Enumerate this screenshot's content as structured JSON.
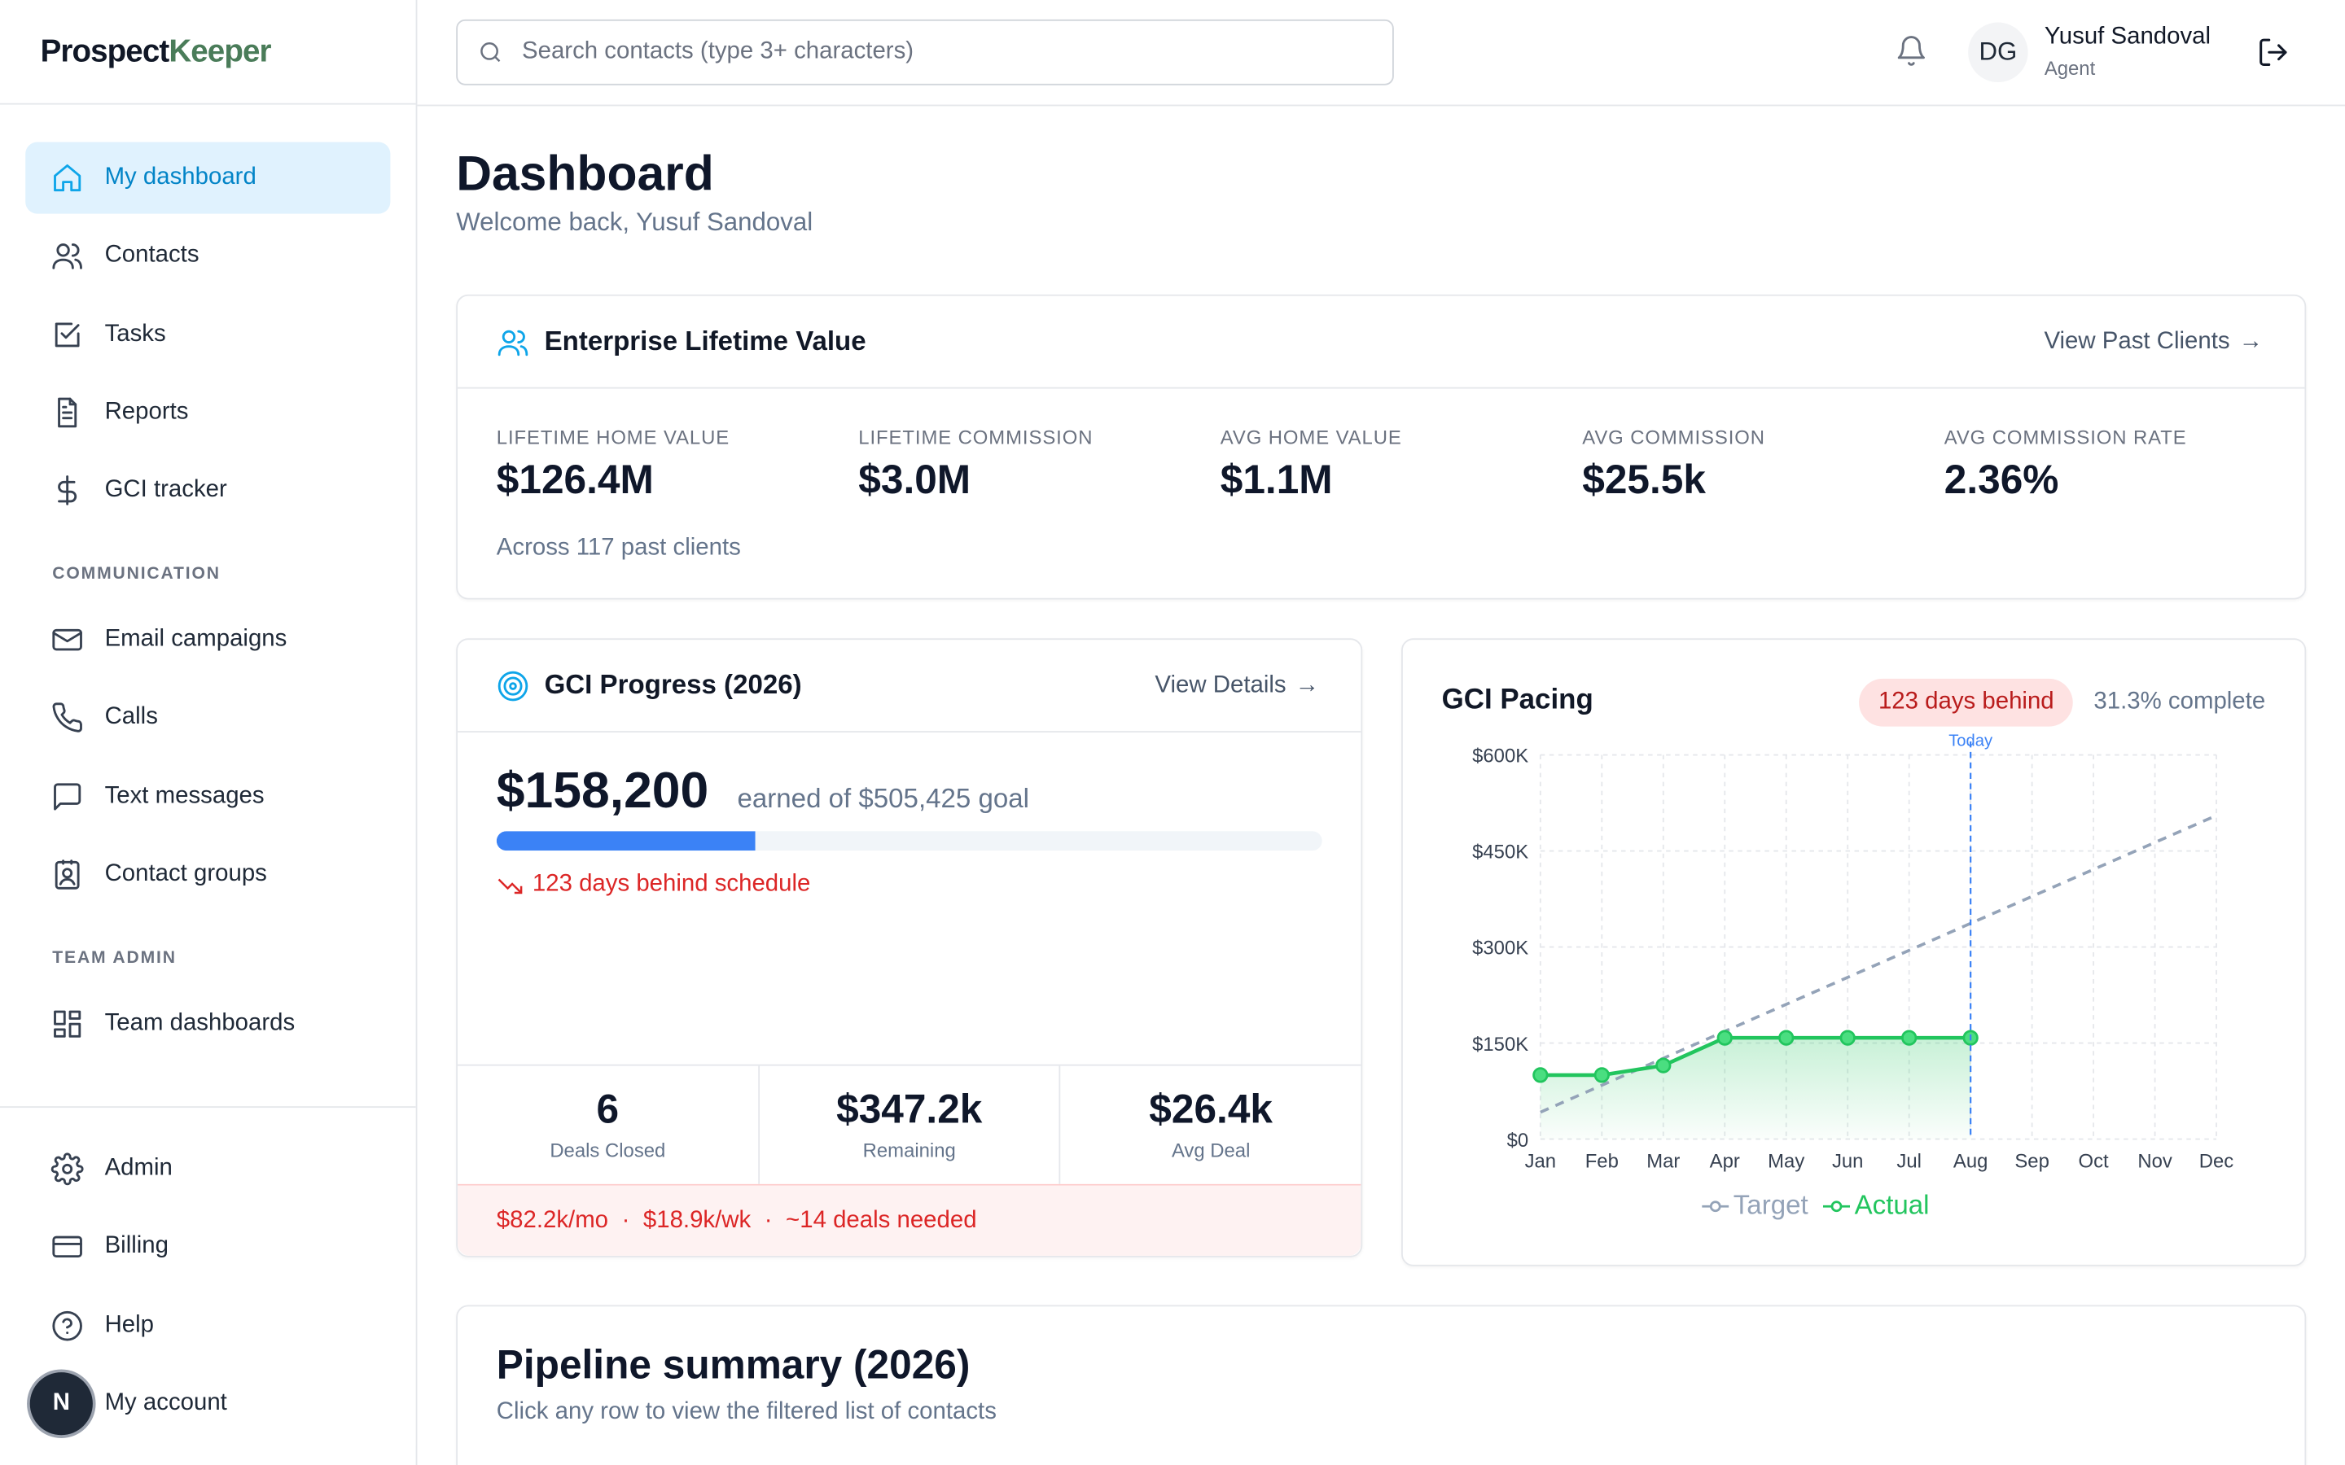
{
  "app": {
    "brand_part1": "Prospect",
    "brand_part2": "Keeper"
  },
  "sidebar": {
    "items": [
      {
        "label": "My dashboard",
        "icon": "home-icon"
      },
      {
        "label": "Contacts",
        "icon": "users-icon"
      },
      {
        "label": "Tasks",
        "icon": "checkbox-icon"
      },
      {
        "label": "Reports",
        "icon": "file-text-icon"
      },
      {
        "label": "GCI tracker",
        "icon": "dollar-icon"
      }
    ],
    "section_communication": "COMMUNICATION",
    "communication": [
      {
        "label": "Email campaigns",
        "icon": "mail-icon"
      },
      {
        "label": "Calls",
        "icon": "phone-icon"
      },
      {
        "label": "Text messages",
        "icon": "message-icon"
      },
      {
        "label": "Contact groups",
        "icon": "contact-book-icon"
      }
    ],
    "section_team": "TEAM ADMIN",
    "team": [
      {
        "label": "Team dashboards",
        "icon": "grid-icon"
      }
    ],
    "bottom": [
      {
        "label": "Admin",
        "icon": "gear-icon"
      },
      {
        "label": "Billing",
        "icon": "credit-card-icon"
      },
      {
        "label": "Help",
        "icon": "help-icon"
      },
      {
        "label": "My account",
        "icon": "user-icon"
      }
    ],
    "badge_letter": "N"
  },
  "topbar": {
    "search_placeholder": "Search contacts (type 3+ characters)",
    "avatar_initials": "DG",
    "user_name": "Yusuf Sandoval",
    "user_role": "Agent"
  },
  "page": {
    "title": "Dashboard",
    "subtitle": "Welcome back, Yusuf Sandoval"
  },
  "elv": {
    "title": "Enterprise Lifetime Value",
    "link": "View Past Clients",
    "stats": [
      {
        "label": "LIFETIME HOME VALUE",
        "value": "$126.4M"
      },
      {
        "label": "LIFETIME COMMISSION",
        "value": "$3.0M"
      },
      {
        "label": "AVG HOME VALUE",
        "value": "$1.1M"
      },
      {
        "label": "AVG COMMISSION",
        "value": "$25.5k"
      },
      {
        "label": "AVG COMMISSION RATE",
        "value": "2.36%"
      }
    ],
    "note": "Across 117 past clients"
  },
  "gci": {
    "title": "GCI Progress (2026)",
    "link": "View Details",
    "amount": "$158,200",
    "goal_text": "earned of $505,425 goal",
    "progress": 0.313,
    "behind": "123 days behind schedule",
    "metrics": [
      {
        "value": "6",
        "label": "Deals Closed"
      },
      {
        "value": "$347.2k",
        "label": "Remaining"
      },
      {
        "value": "$26.4k",
        "label": "Avg Deal"
      }
    ],
    "footer": [
      "$82.2k/mo",
      "$18.9k/wk",
      "~14 deals needed"
    ],
    "footer_sep": "·"
  },
  "pacing": {
    "title": "GCI Pacing",
    "pill": "123 days behind",
    "pct": "31.3% complete",
    "today_label": "Today",
    "colors": {
      "target": "#94a3b8",
      "actual": "#22c55e",
      "today": "#3b82f6"
    }
  },
  "chart_data": {
    "type": "line",
    "categories": [
      "Jan",
      "Feb",
      "Mar",
      "Apr",
      "May",
      "Jun",
      "Jul",
      "Aug",
      "Sep",
      "Oct",
      "Nov",
      "Dec"
    ],
    "y_ticks": [
      "$0",
      "$150K",
      "$300K",
      "$450K",
      "$600K"
    ],
    "ylim": [
      0,
      600000
    ],
    "series": [
      {
        "name": "Target",
        "style": "dashed",
        "x": [
          "Jan",
          "Dec"
        ],
        "values": [
          42000,
          505425
        ]
      },
      {
        "name": "Actual",
        "style": "solid",
        "x": [
          "Jan",
          "Feb",
          "Mar",
          "Apr",
          "May",
          "Jun",
          "Jul",
          "Aug"
        ],
        "values": [
          100000,
          100000,
          115000,
          158200,
          158200,
          158200,
          158200,
          158200
        ]
      }
    ],
    "today_marker": "Aug",
    "grid": true,
    "legend": "bottom"
  },
  "pipeline": {
    "title": "Pipeline summary (2026)",
    "subtitle": "Click any row to view the filtered list of contacts"
  }
}
